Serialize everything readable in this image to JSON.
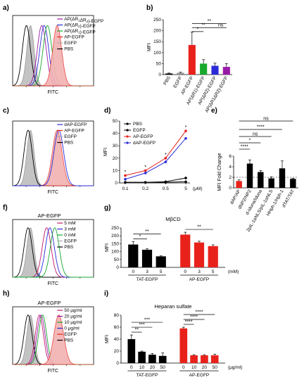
{
  "figure": {
    "panels": [
      "a)",
      "b)",
      "c)",
      "d)",
      "e)",
      "f)",
      "g)",
      "h)",
      "i)"
    ],
    "colors": {
      "black": "#000000",
      "red": "#e8221b",
      "green": "#17a82d",
      "blue": "#2a2ad8",
      "purple": "#9a1aa8",
      "pink": "#f0a8a8",
      "magenta": "#c0186a",
      "gray": "#8c8c8c"
    }
  },
  "histograms": [
    {
      "id": "a",
      "xlabel": "FITC",
      "title": "",
      "legend": [
        "AP(ΔR1ΔR2)-EGFP",
        "AP(ΔR2)-EGFP",
        "AP(ΔR1)-EGFP",
        "AP-EGFP",
        "EGFP",
        "PBS"
      ],
      "colors": [
        "#9a1aa8",
        "#2a2ad8",
        "#17a82d",
        "#e8221b",
        "#aaaaaa",
        "#000000"
      ],
      "curves": [
        {
          "mu": 0.22,
          "sd": 0.045,
          "fill": true,
          "color": "#bdbdbd"
        },
        {
          "mu": 0.17,
          "sd": 0.05,
          "fill": false,
          "color": "#000000"
        },
        {
          "mu": 0.36,
          "sd": 0.055,
          "fill": false,
          "color": "#9a1aa8"
        },
        {
          "mu": 0.39,
          "sd": 0.055,
          "fill": false,
          "color": "#2a2ad8"
        },
        {
          "mu": 0.43,
          "sd": 0.055,
          "fill": false,
          "color": "#17a82d"
        },
        {
          "mu": 0.55,
          "sd": 0.055,
          "fill": true,
          "color": "#f2b2b2",
          "stroke": "#e8221b"
        }
      ]
    },
    {
      "id": "c",
      "xlabel": "FITC",
      "title": "",
      "legend": [
        "dAP-EGFP",
        "AP-EGFP",
        "EGFP",
        "PBS"
      ],
      "colors": [
        "#2a2ad8",
        "#e8221b",
        "#aaaaaa",
        "#000000"
      ],
      "curves": [
        {
          "mu": 0.22,
          "sd": 0.045,
          "fill": true,
          "color": "#bdbdbd"
        },
        {
          "mu": 0.19,
          "sd": 0.05,
          "fill": false,
          "color": "#000000"
        },
        {
          "mu": 0.55,
          "sd": 0.06,
          "fill": true,
          "color": "#f2b2b2",
          "stroke": "#e8221b"
        },
        {
          "mu": 0.57,
          "sd": 0.06,
          "fill": false,
          "color": "#2a2ad8"
        }
      ]
    },
    {
      "id": "f",
      "xlabel": "FITC",
      "title": "AP-EGFP",
      "legend": [
        "5 mM",
        "3 mM",
        "0 mM",
        "EGFP",
        "PBS"
      ],
      "colors": [
        "#c0186a",
        "#2a2ad8",
        "#17a82d",
        "#aaaaaa",
        "#000000"
      ],
      "curves": [
        {
          "mu": 0.22,
          "sd": 0.045,
          "fill": true,
          "color": "#bdbdbd"
        },
        {
          "mu": 0.19,
          "sd": 0.05,
          "fill": false,
          "color": "#000000"
        },
        {
          "mu": 0.42,
          "sd": 0.055,
          "fill": false,
          "color": "#c0186a"
        },
        {
          "mu": 0.46,
          "sd": 0.055,
          "fill": false,
          "color": "#2a2ad8"
        },
        {
          "mu": 0.52,
          "sd": 0.055,
          "fill": false,
          "color": "#17a82d"
        }
      ]
    },
    {
      "id": "h",
      "xlabel": "FITC",
      "title": "AP-EGFP",
      "legend": [
        "50 μg/ml",
        "20 μg/ml",
        "10 μg/ml",
        "0 μg/ml",
        "EGFP",
        "PBS"
      ],
      "colors": [
        "#c0186a",
        "#9a1aa8",
        "#17a82d",
        "#2a2ad8",
        "#e8221b",
        "#000000"
      ],
      "curves": [
        {
          "mu": 0.22,
          "sd": 0.045,
          "fill": true,
          "color": "#bdbdbd"
        },
        {
          "mu": 0.19,
          "sd": 0.05,
          "fill": false,
          "color": "#000000"
        },
        {
          "mu": 0.33,
          "sd": 0.05,
          "fill": false,
          "color": "#c0186a"
        },
        {
          "mu": 0.35,
          "sd": 0.05,
          "fill": false,
          "color": "#9a1aa8"
        },
        {
          "mu": 0.37,
          "sd": 0.05,
          "fill": false,
          "color": "#17a82d"
        },
        {
          "mu": 0.57,
          "sd": 0.06,
          "fill": true,
          "color": "#f2b2b2",
          "stroke": "#e8221b"
        }
      ]
    }
  ],
  "chart_data": [
    {
      "id": "b",
      "type": "bar",
      "ylabel": "MFI",
      "ylim": [
        0,
        250
      ],
      "yticks": [
        0,
        50,
        100,
        150,
        200,
        250
      ],
      "categories": [
        "PBS",
        "EGFP",
        "AP-EGFP",
        "AP(ΔR1)-EGFP",
        "AP(ΔR2)-EGFP",
        "AP(ΔR1ΔR2)-EGFP"
      ],
      "values": [
        5,
        8,
        135,
        50,
        40,
        35
      ],
      "errors": [
        2,
        3,
        58,
        18,
        12,
        15
      ],
      "colors": [
        "#000000",
        "#8c8c8c",
        "#e8221b",
        "#17a82d",
        "#2a2ad8",
        "#9a1aa8"
      ],
      "significance": [
        {
          "from": 2,
          "to": 3,
          "label": "*"
        },
        {
          "from": 2,
          "to": 4,
          "label": "**"
        },
        {
          "from": 2,
          "to": 5,
          "label": "**"
        },
        {
          "from": 4,
          "to": 5,
          "label": "ns"
        }
      ]
    },
    {
      "id": "d",
      "type": "line",
      "ylabel": "MFI",
      "xlabel": "(μM)",
      "ylim": [
        0,
        50
      ],
      "yticks": [
        0,
        10,
        20,
        30,
        40,
        50
      ],
      "categories": [
        "0.1",
        "0.2",
        "0.5",
        "5"
      ],
      "series": [
        {
          "name": "PBS",
          "values": [
            0.5,
            0.5,
            0.5,
            1
          ],
          "color": "#000000"
        },
        {
          "name": "EGFP",
          "values": [
            0.5,
            0.5,
            1,
            4
          ],
          "color": "#000000"
        },
        {
          "name": "AP-EGFP",
          "values": [
            6,
            10,
            20,
            42
          ],
          "color": "#e8221b"
        },
        {
          "name": "dAP-EGFP",
          "values": [
            3,
            8,
            17,
            36
          ],
          "color": "#2a2ad8"
        }
      ],
      "annotations": [
        "*",
        "*",
        "*",
        "*"
      ]
    },
    {
      "id": "e",
      "type": "bar",
      "ylabel": "MFI Fold Change",
      "ylim": [
        0,
        6
      ],
      "yticks": [
        0,
        2,
        4,
        6
      ],
      "categories": [
        "dAP/AP",
        "dNP2/NP2",
        "d-Iduna/Iduna",
        "2pIL-1αNLS/pIL-1αNLS",
        "HHph-1/Hph-1",
        "dTAT/TAT"
      ],
      "values": [
        1.3,
        4.6,
        3.0,
        1.8,
        3.7,
        1.7
      ],
      "errors": [
        0.2,
        0.7,
        0.3,
        0.3,
        1.4,
        0.1
      ],
      "colors": [
        "#e8221b",
        "#000000",
        "#000000",
        "#000000",
        "#000000",
        "#000000"
      ],
      "reference_line": 2,
      "significance": [
        {
          "from": 0,
          "to": 1,
          "label": "****"
        },
        {
          "from": 0,
          "to": 2,
          "label": "*"
        },
        {
          "from": 0,
          "to": 3,
          "label": "ns"
        },
        {
          "from": 0,
          "to": 4,
          "label": "****"
        },
        {
          "from": 0,
          "to": 5,
          "label": "ns"
        }
      ]
    },
    {
      "id": "g",
      "type": "bar",
      "title": "MβCD",
      "ylabel": "MFI",
      "ylim": [
        0,
        250
      ],
      "yticks": [
        0,
        50,
        100,
        150,
        200,
        250
      ],
      "unit": "(mM)",
      "groups": [
        {
          "name": "TAT-EGFP",
          "categories": [
            "0",
            "3",
            "5"
          ],
          "values": [
            145,
            112,
            70
          ],
          "errors": [
            18,
            6,
            3
          ],
          "color": "#000000"
        },
        {
          "name": "AP-EGFP",
          "categories": [
            "0",
            "3",
            "5"
          ],
          "values": [
            208,
            158,
            135
          ],
          "errors": [
            15,
            8,
            8
          ],
          "color": "#e8221b"
        }
      ],
      "significance": [
        {
          "group": 0,
          "from": 0,
          "to": 1,
          "label": "*"
        },
        {
          "group": 0,
          "from": 0,
          "to": 2,
          "label": "**"
        },
        {
          "group": 1,
          "from": 0,
          "to": 2,
          "label": "**"
        }
      ]
    },
    {
      "id": "i",
      "type": "bar",
      "title": "Heparan sulfate",
      "ylabel": "MFI",
      "ylim": [
        0,
        80
      ],
      "yticks": [
        0,
        20,
        40,
        60,
        80
      ],
      "unit": "(μg/ml)",
      "groups": [
        {
          "name": "TAT-EGFP",
          "categories": [
            "0",
            "10",
            "20",
            "50"
          ],
          "values": [
            40,
            19,
            14,
            12
          ],
          "errors": [
            7,
            1,
            2,
            5
          ],
          "color": "#000000"
        },
        {
          "name": "AP-EGFP",
          "categories": [
            "0",
            "10",
            "20",
            "50"
          ],
          "values": [
            58,
            13,
            13,
            13
          ],
          "errors": [
            2,
            1,
            1,
            2
          ],
          "color": "#e8221b"
        }
      ],
      "significance": [
        {
          "group": 0,
          "from": 0,
          "to": 1,
          "label": "**"
        },
        {
          "group": 0,
          "from": 0,
          "to": 2,
          "label": "***"
        },
        {
          "group": 0,
          "from": 0,
          "to": 3,
          "label": "***"
        },
        {
          "group": 1,
          "from": 0,
          "to": 1,
          "label": "****"
        },
        {
          "group": 1,
          "from": 0,
          "to": 2,
          "label": "****"
        },
        {
          "group": 1,
          "from": 0,
          "to": 3,
          "label": "****"
        }
      ]
    }
  ]
}
